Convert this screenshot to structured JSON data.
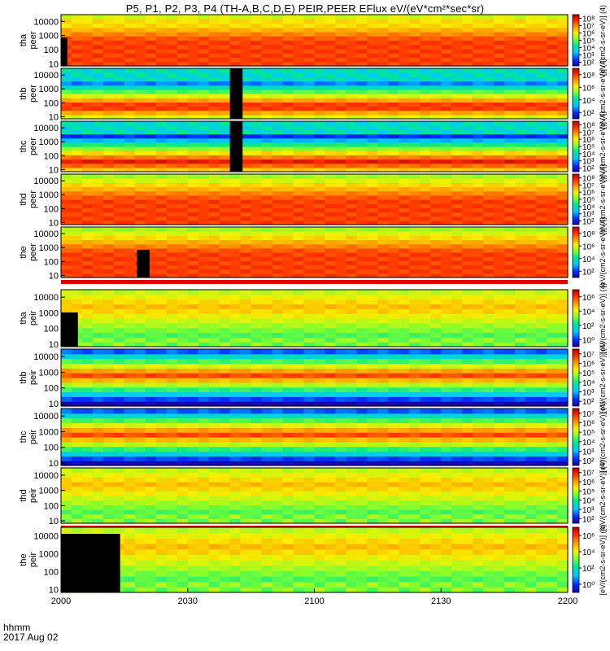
{
  "chart_data": {
    "type": "heatmap",
    "title": "P5, P1, P2, P3, P4 (TH-A,B,C,D,E) PEIR,PEER EFlux eV/(eV*cm²*sec*sr)",
    "x_unit_label": "hhmm",
    "date_label": "2017 Aug 02",
    "x_ticks": [
      "2000",
      "2030",
      "2100",
      "2130",
      "2200"
    ],
    "x_range_minutes": [
      0,
      120
    ],
    "y_scale": "log",
    "y_range_eV": [
      7,
      30000
    ],
    "y_ticks": [
      "10",
      "100",
      "1000",
      "10000"
    ],
    "colorbar_label": "[eV/(cm2-s-sr-eV)] (4)",
    "panels": [
      {
        "label": "tha peer",
        "species": "electron",
        "colorbar_ticks": [
          "10²",
          "10³",
          "10⁴",
          "10⁵",
          "10⁶",
          "10⁷",
          "10⁸"
        ]
      },
      {
        "label": "thb peer",
        "species": "electron",
        "colorbar_ticks": [
          "10²",
          "10⁴",
          "10⁶",
          "10⁸"
        ]
      },
      {
        "label": "thc peer",
        "species": "electron",
        "colorbar_ticks": [
          "10²",
          "10³",
          "10⁴",
          "10⁵",
          "10⁶",
          "10⁷",
          "10⁸"
        ]
      },
      {
        "label": "thd peer",
        "species": "electron",
        "colorbar_ticks": [
          "10²",
          "10³",
          "10⁴",
          "10⁵",
          "10⁶",
          "10⁷",
          "10⁸"
        ]
      },
      {
        "label": "the peer",
        "species": "electron",
        "colorbar_ticks": [
          "10²",
          "10⁴",
          "10⁶",
          "10⁸"
        ]
      },
      {
        "label": "tha peir",
        "species": "ion",
        "colorbar_ticks": [
          "10⁰",
          "10²",
          "10⁴",
          "10⁶"
        ]
      },
      {
        "label": "thb peir",
        "species": "ion",
        "colorbar_ticks": [
          "10²",
          "10³",
          "10⁴",
          "10⁵",
          "10⁶",
          "10⁷"
        ]
      },
      {
        "label": "thc peir",
        "species": "ion",
        "colorbar_ticks": [
          "10²",
          "10³",
          "10⁴",
          "10⁵",
          "10⁶",
          "10⁷"
        ]
      },
      {
        "label": "thd peir",
        "species": "ion",
        "colorbar_ticks": [
          "10²",
          "10³",
          "10⁴",
          "10⁵",
          "10⁶",
          "10⁷"
        ]
      },
      {
        "label": "the peir",
        "species": "ion",
        "colorbar_ticks": [
          "10⁰",
          "10²",
          "10⁴",
          "10⁶"
        ]
      }
    ]
  }
}
